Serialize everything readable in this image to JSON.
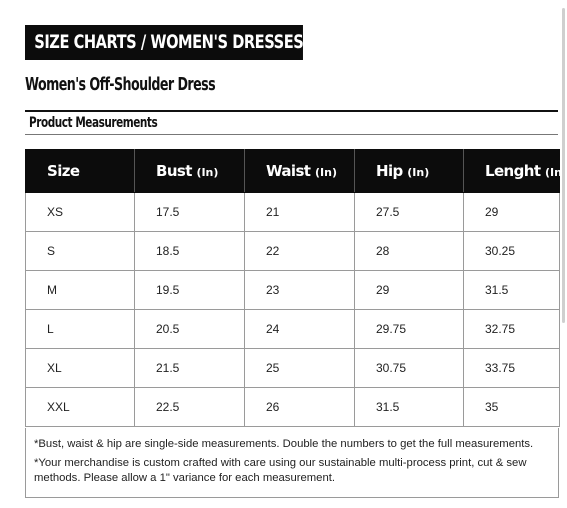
{
  "header": {
    "banner": "SIZE CHARTS / WOMEN'S DRESSES",
    "product_title": "Women's Off-Shoulder Dress",
    "section_title": "Product Measurements"
  },
  "table": {
    "columns": [
      {
        "label": "Size",
        "unit": ""
      },
      {
        "label": "Bust",
        "unit": "(In)"
      },
      {
        "label": "Waist",
        "unit": "(In)"
      },
      {
        "label": "Hip",
        "unit": "(In)"
      },
      {
        "label": "Lenght",
        "unit": "(In)"
      }
    ],
    "rows": [
      [
        "XS",
        "17.5",
        "21",
        "27.5",
        "29"
      ],
      [
        "S",
        "18.5",
        "22",
        "28",
        "30.25"
      ],
      [
        "M",
        "19.5",
        "23",
        "29",
        "31.5"
      ],
      [
        "L",
        "20.5",
        "24",
        "29.75",
        "32.75"
      ],
      [
        "XL",
        "21.5",
        "25",
        "30.75",
        "33.75"
      ],
      [
        "XXL",
        "22.5",
        "26",
        "31.5",
        "35"
      ]
    ]
  },
  "notes": [
    "*Bust, waist & hip are single-side measurements. Double the numbers to get the full measurements.",
    "*Your merchandise is custom crafted with care using our sustainable multi-process print, cut & sew methods. Please allow a 1\" variance for each measurement."
  ]
}
